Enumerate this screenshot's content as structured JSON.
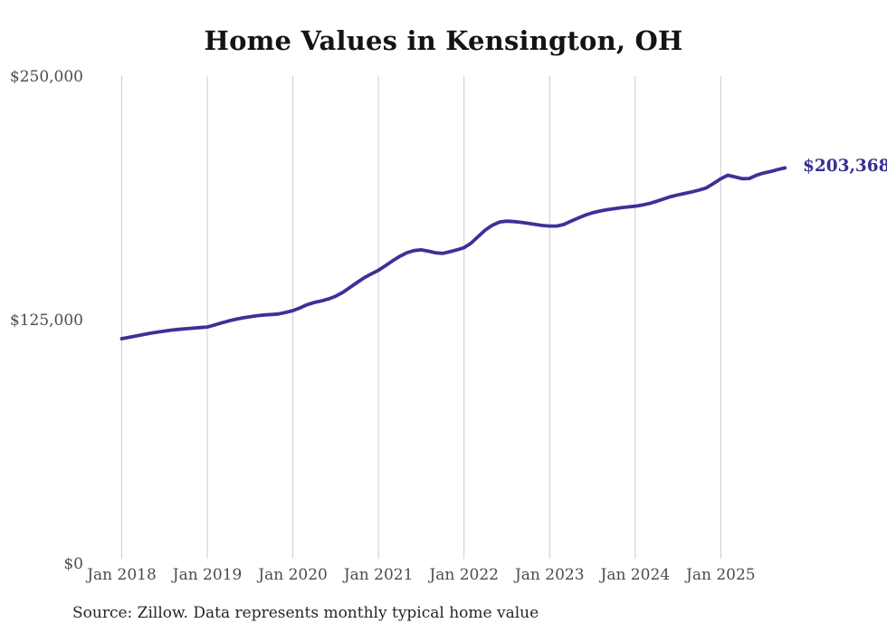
{
  "title": "Home Values in Kensington, OH",
  "source_note": "Source: Zillow. Data represents monthly typical home value",
  "colors": {
    "line": "#3a3296",
    "end_label_text": "#362f94",
    "grid": "#cccccc",
    "axis_text": "#4d4d4d",
    "title_text": "#141414",
    "source_text": "#262626",
    "background": "#ffffff"
  },
  "chart_data": {
    "type": "line",
    "title": "Home Values in Kensington, OH",
    "series_name": "Monthly typical home value",
    "units": "USD",
    "cadence": "monthly",
    "x_start": "Jan 2018",
    "x_end": "Oct 2025",
    "end_label": "$203,368",
    "final_value": 203368,
    "ylim": [
      0,
      250000
    ],
    "grid": "vertical-only",
    "legend": "none",
    "y_ticks": [
      {
        "label": "$0",
        "value": 0
      },
      {
        "label": "$125,000",
        "value": 125000
      },
      {
        "label": "$250,000",
        "value": 250000
      }
    ],
    "x_ticks": [
      "Jan 2018",
      "Jan 2019",
      "Jan 2020",
      "Jan 2021",
      "Jan 2022",
      "Jan 2023",
      "Jan 2024",
      "Jan 2025"
    ],
    "values": [
      115700,
      116400,
      117100,
      117800,
      118500,
      119100,
      119600,
      120100,
      120500,
      120800,
      121100,
      121400,
      121700,
      122700,
      123800,
      124800,
      125700,
      126400,
      127000,
      127500,
      127900,
      128100,
      128400,
      129200,
      130100,
      131500,
      133200,
      134300,
      135100,
      136100,
      137500,
      139500,
      142000,
      144500,
      147000,
      149000,
      150800,
      153200,
      155700,
      158000,
      159800,
      160900,
      161300,
      160600,
      159800,
      159500,
      160300,
      161300,
      162400,
      164800,
      168200,
      171500,
      174000,
      175600,
      176000,
      175800,
      175400,
      174900,
      174300,
      173800,
      173500,
      173500,
      174300,
      176000,
      177600,
      179100,
      180300,
      181200,
      181900,
      182400,
      182900,
      183300,
      183700,
      184300,
      185100,
      186200,
      187400,
      188600,
      189500,
      190300,
      191100,
      192000,
      193100,
      195400,
      197800,
      199600,
      198700,
      197800,
      197900,
      199600,
      200700,
      201500,
      202500,
      203368
    ]
  }
}
